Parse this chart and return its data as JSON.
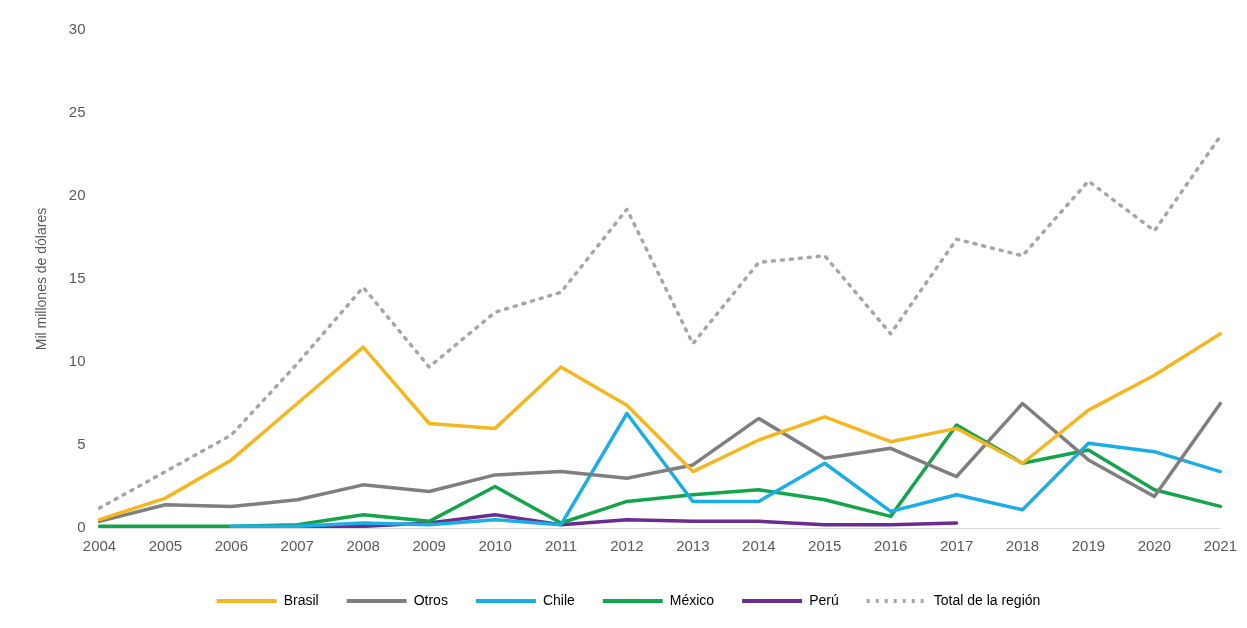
{
  "chart_data": {
    "type": "line",
    "ylabel": "Mil millones de dólares",
    "categories": [
      "2004",
      "2005",
      "2006",
      "2007",
      "2008",
      "2009",
      "2010",
      "2011",
      "2012",
      "2013",
      "2014",
      "2015",
      "2016",
      "2017",
      "2018",
      "2019",
      "2020",
      "2021"
    ],
    "ylim": [
      0,
      30
    ],
    "yticks": [
      0,
      5,
      10,
      15,
      20,
      25,
      30
    ],
    "grid": false,
    "legend": "bottom",
    "marker": "none",
    "series": [
      {
        "name": "Brasil",
        "color": "#f5b71f",
        "values": [
          0.5,
          1.8,
          4.1,
          7.5,
          10.9,
          6.3,
          6.0,
          9.7,
          7.4,
          3.4,
          5.3,
          6.7,
          5.2,
          6.0,
          3.9,
          7.1,
          9.2,
          11.7
        ]
      },
      {
        "name": "Otros",
        "color": "#7f7f7f",
        "values": [
          0.4,
          1.4,
          1.3,
          1.7,
          2.6,
          2.2,
          3.2,
          3.4,
          3.0,
          3.8,
          6.6,
          4.2,
          4.8,
          3.1,
          7.5,
          4.1,
          1.9,
          7.5
        ]
      },
      {
        "name": "Chile",
        "color": "#1aaee5",
        "values": [
          null,
          null,
          0.1,
          0.1,
          0.3,
          0.2,
          0.5,
          0.2,
          6.9,
          1.6,
          1.6,
          3.9,
          1.0,
          2.0,
          1.1,
          5.1,
          4.6,
          3.4
        ]
      },
      {
        "name": "México",
        "color": "#14a54a",
        "values": [
          0.1,
          0.1,
          0.1,
          0.2,
          0.8,
          0.4,
          2.5,
          0.3,
          1.6,
          2.0,
          2.3,
          1.7,
          0.7,
          6.2,
          3.9,
          4.7,
          2.3,
          1.3
        ]
      },
      {
        "name": "Perú",
        "color": "#6a2c91",
        "values": [
          null,
          null,
          0.0,
          0.1,
          0.1,
          0.3,
          0.8,
          0.2,
          0.5,
          0.4,
          0.4,
          0.2,
          0.2,
          0.3,
          null,
          null,
          null,
          null
        ]
      },
      {
        "name": "Total de la región",
        "color": "#a6a6a6",
        "line_style": "dotted",
        "values": [
          1.2,
          3.4,
          5.6,
          9.9,
          14.5,
          9.7,
          13.0,
          14.2,
          19.2,
          11.1,
          16.0,
          16.4,
          11.7,
          17.4,
          16.4,
          20.9,
          17.9,
          23.6
        ]
      }
    ]
  }
}
